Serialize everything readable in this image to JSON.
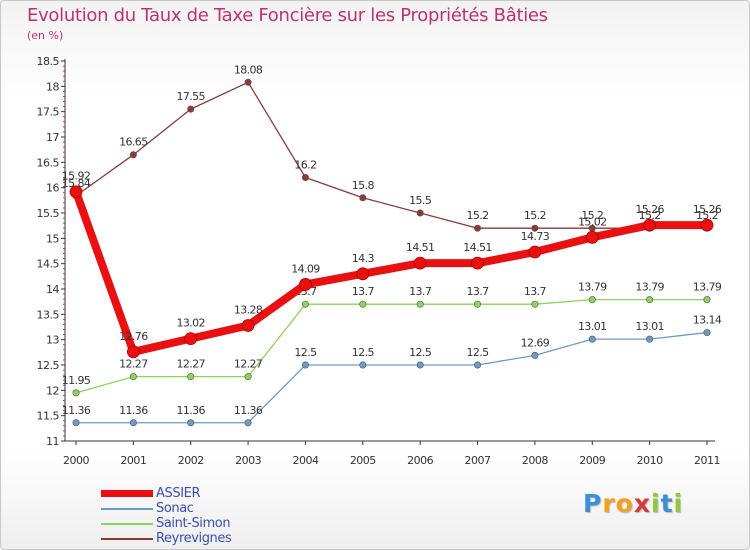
{
  "chart_data": {
    "type": "line",
    "title": "Evolution du Taux de Taxe Foncière sur les Propriétés Bâties",
    "subtitle": "(en %)",
    "x": [
      "2000",
      "2001",
      "2002",
      "2003",
      "2004",
      "2005",
      "2006",
      "2007",
      "2008",
      "2009",
      "2010",
      "2011"
    ],
    "ylim": [
      11,
      18.5
    ],
    "yticks": [
      "11",
      "11.5",
      "12",
      "12.5",
      "13",
      "13.5",
      "14",
      "14.5",
      "15",
      "15.5",
      "16",
      "16.5",
      "17",
      "17.5",
      "18",
      "18.5"
    ],
    "series": [
      {
        "name": "Reyrevignes",
        "color": "#8a3a3a",
        "values": [
          15.84,
          16.65,
          17.55,
          18.08,
          16.2,
          15.8,
          15.5,
          15.2,
          15.2,
          15.2,
          15.2,
          15.2
        ],
        "labels": [
          "15.84",
          "16.65",
          "17.55",
          "18.08",
          "16.2",
          "15.8",
          "15.5",
          "15.2",
          "15.2",
          "15.2",
          "15.2",
          "15.2"
        ]
      },
      {
        "name": "Saint-Simon",
        "color": "#8fd35a",
        "values": [
          11.95,
          12.27,
          12.27,
          12.27,
          13.7,
          13.7,
          13.7,
          13.7,
          13.7,
          13.79,
          13.79,
          13.79
        ],
        "labels": [
          "11.95",
          "12.27",
          "12.27",
          "12.27",
          "13.7",
          "13.7",
          "13.7",
          "13.7",
          "13.7",
          "13.79",
          "13.79",
          "13.79"
        ]
      },
      {
        "name": "Sonac",
        "color": "#6b9bc9",
        "values": [
          11.36,
          11.36,
          11.36,
          11.36,
          12.5,
          12.5,
          12.5,
          12.5,
          12.69,
          13.01,
          13.01,
          13.14
        ],
        "labels": [
          "11.36",
          "11.36",
          "11.36",
          "11.36",
          "12.5",
          "12.5",
          "12.5",
          "12.5",
          "12.69",
          "13.01",
          "13.01",
          "13.14"
        ]
      },
      {
        "name": "ASSIER",
        "color": "#e81010",
        "values": [
          15.92,
          12.76,
          13.02,
          13.28,
          14.09,
          14.3,
          14.51,
          14.51,
          14.73,
          15.02,
          15.26,
          15.26
        ],
        "labels": [
          "15.92",
          "12.76",
          "13.02",
          "13.28",
          "14.09",
          "14.3",
          "14.51",
          "14.51",
          "14.73",
          "15.02",
          "15.26",
          "15.26"
        ]
      }
    ],
    "legend": [
      "ASSIER",
      "Sonac",
      "Saint-Simon",
      "Reyrevignes"
    ],
    "grid": false
  },
  "brand": {
    "letters": [
      "P",
      "r",
      "o",
      "x",
      "i",
      "t",
      "i"
    ],
    "colors": [
      "#3b8fd6",
      "#f4a21b",
      "#f4a21b",
      "#d63b3b",
      "#8fc93a",
      "#3b8fd6",
      "#8fc93a"
    ]
  }
}
